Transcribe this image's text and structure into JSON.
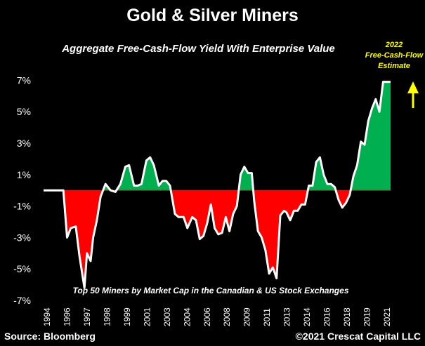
{
  "header": {
    "title": "Gold & Silver Miners",
    "subtitle": "Aggregate Free-Cash-Flow Yield With Enterprise Value",
    "annotation": [
      "2022",
      "Free-Cash-Flow",
      "Estimate"
    ]
  },
  "footer": {
    "note": "Top 50 Miners by Market Cap in the Canadian & US Stock Exchanges",
    "source": "Source: Bloomberg",
    "credit": "©2021 Crescat Capital LLC"
  },
  "colors": {
    "positive": "#00b050",
    "negative": "#ff0000",
    "line": "#ffffff",
    "arrow": "#ffff00"
  },
  "chart_data": {
    "type": "area",
    "title": "Gold & Silver Miners",
    "subtitle": "Aggregate Free-Cash-Flow Yield With Enterprise Value",
    "ylim": [
      -7,
      8
    ],
    "yticks": [
      7,
      5,
      3,
      1,
      -1,
      -3,
      -5,
      -7
    ],
    "ytick_labels": [
      "7%",
      "5%",
      "3%",
      "1%",
      "-1%",
      "-3%",
      "-5%",
      "-7%"
    ],
    "xlim": [
      1994,
      2022
    ],
    "xticks": [
      "1994",
      "1996",
      "1997",
      "1998",
      "1999",
      "2001",
      "2003",
      "2004",
      "2006",
      "2008",
      "2009",
      "2011",
      "2013",
      "2014",
      "2016",
      "2018",
      "2019",
      "2021"
    ],
    "grid": false,
    "fill_positive_color": "#00b050",
    "fill_negative_color": "#ff0000",
    "series": [
      {
        "x": [
          1994.0,
          1995.6,
          1995.9,
          1996.2,
          1996.6,
          1996.9,
          1997.3,
          1997.5,
          1997.8,
          1998.0,
          1998.3,
          1998.6,
          1999.0,
          1999.4,
          1999.8,
          2000.2,
          2000.6,
          2000.9,
          2001.3,
          2001.6,
          2001.9,
          2002.3,
          2002.6,
          2002.9,
          2003.3,
          2003.6,
          2003.9,
          2004.2,
          2004.6,
          2004.9,
          2005.3,
          2005.6,
          2006.0,
          2006.3,
          2006.6,
          2006.9,
          2007.2,
          2007.5,
          2007.8,
          2008.1,
          2008.4,
          2008.7,
          2009.0,
          2009.3,
          2009.6,
          2009.9,
          2010.2,
          2010.5,
          2010.8,
          2011.0,
          2011.3,
          2011.6,
          2011.9,
          2012.2,
          2012.5,
          2012.8,
          2013.1,
          2013.4,
          2013.6,
          2013.9,
          2014.2,
          2014.5,
          2014.8,
          2015.1,
          2015.4,
          2015.7,
          2016.0,
          2016.3,
          2016.6,
          2016.9,
          2017.2,
          2017.5,
          2017.8,
          2018.1,
          2018.4,
          2018.7,
          2019.0,
          2019.3,
          2019.6,
          2019.9,
          2020.2,
          2020.5,
          2020.8,
          2021.1,
          2021.4,
          2021.7,
          2022.0
        ],
        "values": [
          0.0,
          0.0,
          -3.0,
          -2.4,
          -2.3,
          -4.2,
          -6.2,
          -4.0,
          -4.5,
          -3.0,
          -1.9,
          -0.4,
          0.4,
          0.0,
          -0.1,
          0.4,
          1.5,
          1.6,
          0.3,
          0.3,
          0.4,
          1.9,
          2.1,
          1.6,
          0.3,
          0.6,
          0.6,
          0.3,
          -1.5,
          -1.7,
          -1.7,
          -2.4,
          -1.7,
          -1.9,
          -3.1,
          -2.9,
          -2.1,
          -0.9,
          -2.4,
          -2.8,
          -2.7,
          -1.7,
          -2.6,
          -1.5,
          -1.0,
          1.0,
          1.5,
          1.1,
          1.1,
          -0.7,
          -2.6,
          -3.0,
          -3.8,
          -5.3,
          -4.9,
          -5.6,
          -1.6,
          -1.3,
          -1.4,
          -1.9,
          -1.3,
          -1.3,
          -0.9,
          -0.9,
          0.3,
          0.3,
          1.8,
          2.1,
          1.0,
          0.4,
          0.4,
          0.2,
          -0.6,
          -1.1,
          -0.8,
          -0.3,
          0.9,
          1.6,
          3.1,
          2.9,
          4.4,
          5.2,
          5.8,
          5.0,
          6.9,
          6.9,
          6.9
        ]
      }
    ]
  }
}
